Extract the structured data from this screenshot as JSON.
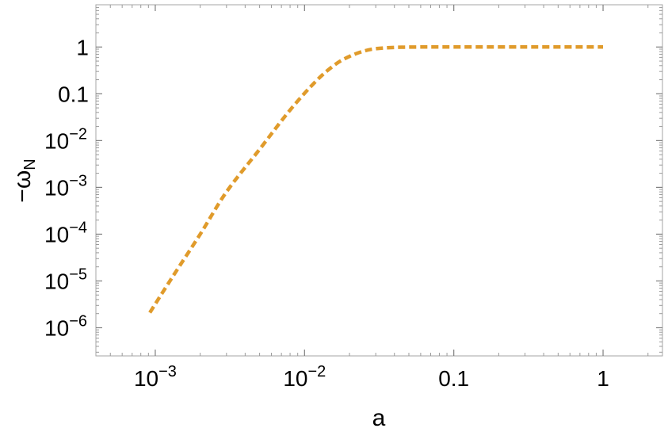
{
  "chart_data": {
    "type": "line",
    "xlabel": "a",
    "ylabel": "−ω",
    "ylabel_sub": "N",
    "xscale": "log",
    "yscale": "log",
    "xlim": [
      0.0004,
      2.5
    ],
    "ylim": [
      2.5e-07,
      8
    ],
    "grid": false,
    "legend": "none",
    "frame": true,
    "x_ticks": [
      {
        "value": 0.001,
        "base": "10",
        "exp": "−3"
      },
      {
        "value": 0.01,
        "base": "10",
        "exp": "−2"
      },
      {
        "value": 0.1,
        "label": "0.1"
      },
      {
        "value": 1,
        "label": "1"
      }
    ],
    "y_ticks": [
      {
        "value": 1,
        "label": "1"
      },
      {
        "value": 0.1,
        "label": "0.1"
      },
      {
        "value": 0.01,
        "base": "10",
        "exp": "−2"
      },
      {
        "value": 0.001,
        "base": "10",
        "exp": "−3"
      },
      {
        "value": 0.0001,
        "base": "10",
        "exp": "−4"
      },
      {
        "value": 1e-05,
        "base": "10",
        "exp": "−5"
      },
      {
        "value": 1e-06,
        "base": "10",
        "exp": "−6"
      }
    ],
    "series": [
      {
        "color": "#e09b2b",
        "style": "dashed",
        "x": [
          0.00092,
          0.0013,
          0.002,
          0.003,
          0.005,
          0.008,
          0.012,
          0.016,
          0.02,
          0.025,
          0.03,
          0.04,
          0.06,
          0.1,
          0.3,
          1
        ],
        "y": [
          2.1e-06,
          1.2e-05,
          0.0001,
          0.0008,
          0.0065,
          0.045,
          0.19,
          0.42,
          0.63,
          0.82,
          0.92,
          0.98,
          1,
          1,
          1,
          1
        ]
      }
    ]
  }
}
